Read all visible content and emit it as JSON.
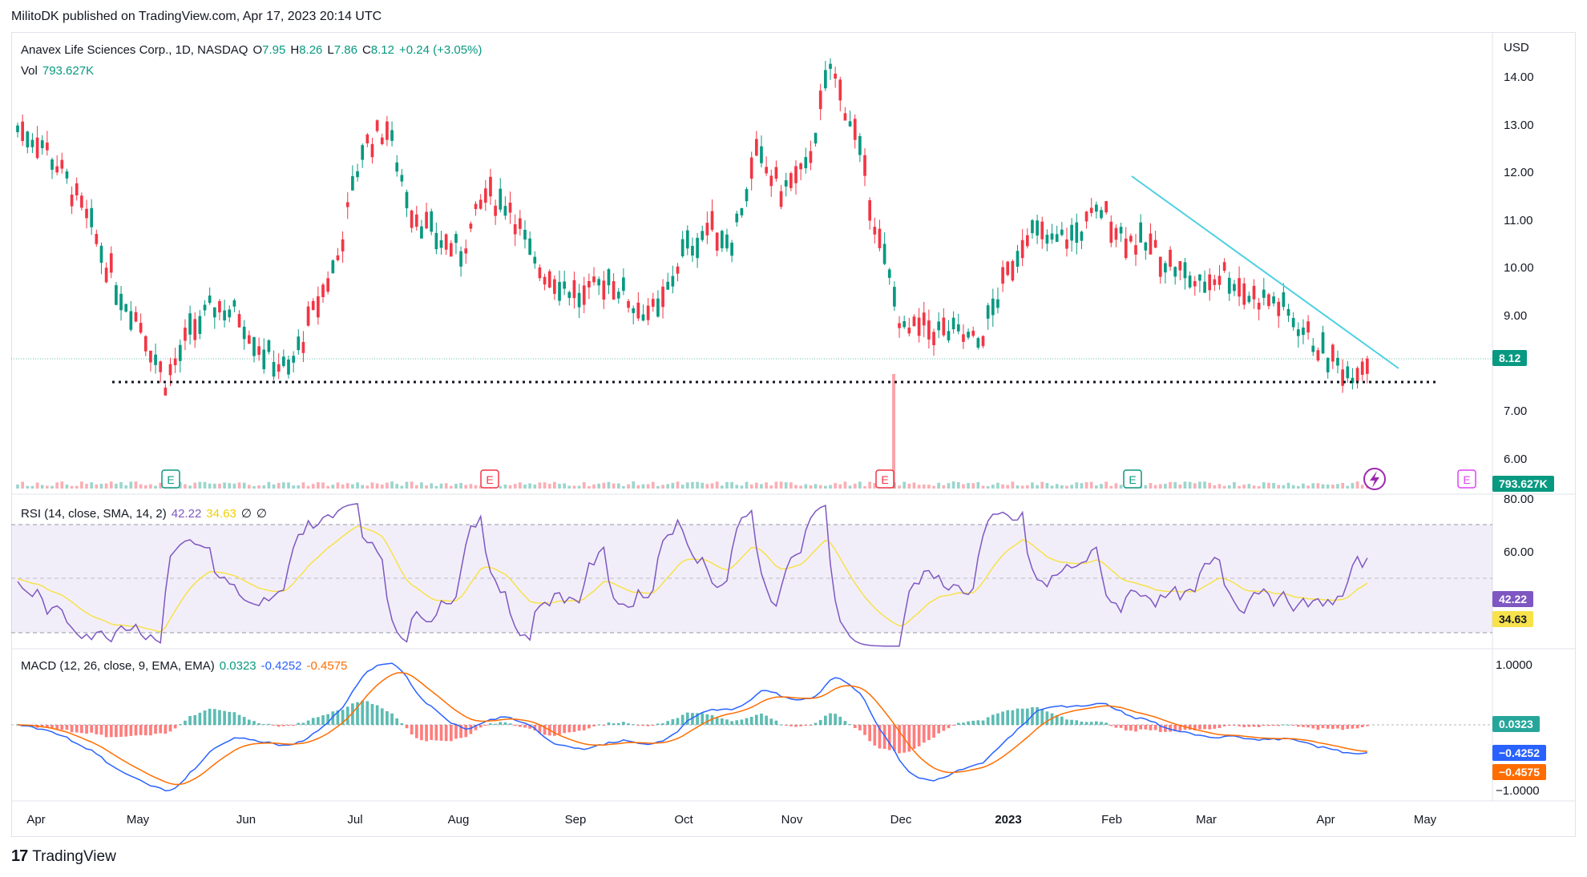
{
  "header": {
    "published_by": "MilitoDK published on TradingView.com, Apr 17, 2023 20:14 UTC"
  },
  "main_legend": {
    "symbol": "Anavex Life Sciences Corp., 1D, NASDAQ",
    "open_label": "O",
    "open": "7.95",
    "high_label": "H",
    "high": "8.26",
    "low_label": "L",
    "low": "7.86",
    "close_label": "C",
    "close": "8.12",
    "change": "+0.24 (+3.05%)",
    "vol_label": "Vol",
    "vol": "793.627K"
  },
  "rsi_legend": {
    "name": "RSI (14, close, SMA, 14, 2)",
    "rsi": "42.22",
    "sma": "34.63",
    "extra1": "∅",
    "extra2": "∅"
  },
  "macd_legend": {
    "name": "MACD (12, 26, close, 9, EMA, EMA)",
    "hist": "0.0323",
    "macd": "-0.4252",
    "signal": "-0.4575"
  },
  "price_axis": {
    "currency": "USD",
    "ticks": [
      "14.00",
      "13.00",
      "12.00",
      "11.00",
      "10.00",
      "9.00",
      "7.00",
      "6.00"
    ],
    "last_price": "8.12",
    "last_volume": "793.627K"
  },
  "rsi_axis": {
    "ticks": [
      "80.00",
      "60.00"
    ],
    "rsi_value": "42.22",
    "sma_value": "34.63"
  },
  "macd_axis": {
    "ticks": [
      "1.0000",
      "−1.0000"
    ],
    "hist_value": "0.0323",
    "macd_value": "−0.4252",
    "signal_value": "−0.4575"
  },
  "time_axis": {
    "labels": [
      "Apr",
      "May",
      "Jun",
      "Jul",
      "Aug",
      "Sep",
      "Oct",
      "Nov",
      "Dec",
      "2023",
      "Feb",
      "Mar",
      "Apr",
      "May"
    ]
  },
  "events": {
    "earnings_marker": "E"
  },
  "footer": {
    "brand": "TradingView"
  },
  "colors": {
    "up": "#089981",
    "down": "#f23645",
    "trendline": "#4dd0e1",
    "rsi": "#7e57c2",
    "rsi_sma": "#f7e24b",
    "macd": "#2962ff",
    "signal": "#ff6d00",
    "earnings_up": "#089981",
    "earnings_down": "#f23645",
    "dividend": "#e040fb"
  },
  "chart_data": {
    "type": "candlestick",
    "symbol": "Anavex Life Sciences Corp., 1D, NASDAQ",
    "price_range": [
      5.3,
      15.0
    ],
    "support_level": 7.6,
    "trendline": {
      "from": {
        "date": "2023-02-07",
        "price": 11.9
      },
      "to": {
        "date": "2023-04-20",
        "price": 7.9
      }
    },
    "weekly_close_approx": [
      {
        "date": "2022-03-28",
        "close": 12.9
      },
      {
        "date": "2022-04-04",
        "close": 12.6
      },
      {
        "date": "2022-04-11",
        "close": 11.8
      },
      {
        "date": "2022-04-18",
        "close": 10.8
      },
      {
        "date": "2022-04-25",
        "close": 9.6
      },
      {
        "date": "2022-05-02",
        "close": 8.8
      },
      {
        "date": "2022-05-09",
        "close": 7.6
      },
      {
        "date": "2022-05-16",
        "close": 8.6
      },
      {
        "date": "2022-05-23",
        "close": 9.2
      },
      {
        "date": "2022-05-30",
        "close": 9.0
      },
      {
        "date": "2022-06-06",
        "close": 8.2
      },
      {
        "date": "2022-06-13",
        "close": 7.8
      },
      {
        "date": "2022-06-20",
        "close": 9.0
      },
      {
        "date": "2022-06-27",
        "close": 10.2
      },
      {
        "date": "2022-07-04",
        "close": 12.5
      },
      {
        "date": "2022-07-11",
        "close": 12.9
      },
      {
        "date": "2022-07-18",
        "close": 11.2
      },
      {
        "date": "2022-07-25",
        "close": 10.6
      },
      {
        "date": "2022-08-01",
        "close": 10.3
      },
      {
        "date": "2022-08-08",
        "close": 11.5
      },
      {
        "date": "2022-08-15",
        "close": 11.3
      },
      {
        "date": "2022-08-22",
        "close": 10.0
      },
      {
        "date": "2022-08-29",
        "close": 9.7
      },
      {
        "date": "2022-09-05",
        "close": 9.3
      },
      {
        "date": "2022-09-12",
        "close": 9.8
      },
      {
        "date": "2022-09-19",
        "close": 9.2
      },
      {
        "date": "2022-09-26",
        "close": 9.0
      },
      {
        "date": "2022-10-03",
        "close": 10.3
      },
      {
        "date": "2022-10-10",
        "close": 10.8
      },
      {
        "date": "2022-10-17",
        "close": 10.6
      },
      {
        "date": "2022-10-24",
        "close": 12.3
      },
      {
        "date": "2022-10-31",
        "close": 11.6
      },
      {
        "date": "2022-11-07",
        "close": 12.0
      },
      {
        "date": "2022-11-14",
        "close": 14.2
      },
      {
        "date": "2022-11-21",
        "close": 12.8
      },
      {
        "date": "2022-11-28",
        "close": 10.5
      },
      {
        "date": "2022-12-05",
        "close": 8.6
      },
      {
        "date": "2022-12-12",
        "close": 8.7
      },
      {
        "date": "2022-12-19",
        "close": 8.6
      },
      {
        "date": "2022-12-26",
        "close": 8.4
      },
      {
        "date": "2023-01-02",
        "close": 9.6
      },
      {
        "date": "2023-01-09",
        "close": 10.8
      },
      {
        "date": "2023-01-16",
        "close": 10.5
      },
      {
        "date": "2023-01-23",
        "close": 10.7
      },
      {
        "date": "2023-01-30",
        "close": 11.2
      },
      {
        "date": "2023-02-06",
        "close": 10.6
      },
      {
        "date": "2023-02-13",
        "close": 10.4
      },
      {
        "date": "2023-02-20",
        "close": 10.0
      },
      {
        "date": "2023-02-27",
        "close": 9.6
      },
      {
        "date": "2023-03-06",
        "close": 9.9
      },
      {
        "date": "2023-03-13",
        "close": 9.4
      },
      {
        "date": "2023-03-20",
        "close": 9.3
      },
      {
        "date": "2023-03-27",
        "close": 8.8
      },
      {
        "date": "2023-04-03",
        "close": 8.2
      },
      {
        "date": "2023-04-10",
        "close": 7.8
      },
      {
        "date": "2023-04-17",
        "close": 8.12
      }
    ],
    "rsi_range": [
      20,
      80
    ],
    "rsi_bands": [
      70,
      50,
      30
    ],
    "macd_range": [
      -1.2,
      1.2
    ]
  }
}
